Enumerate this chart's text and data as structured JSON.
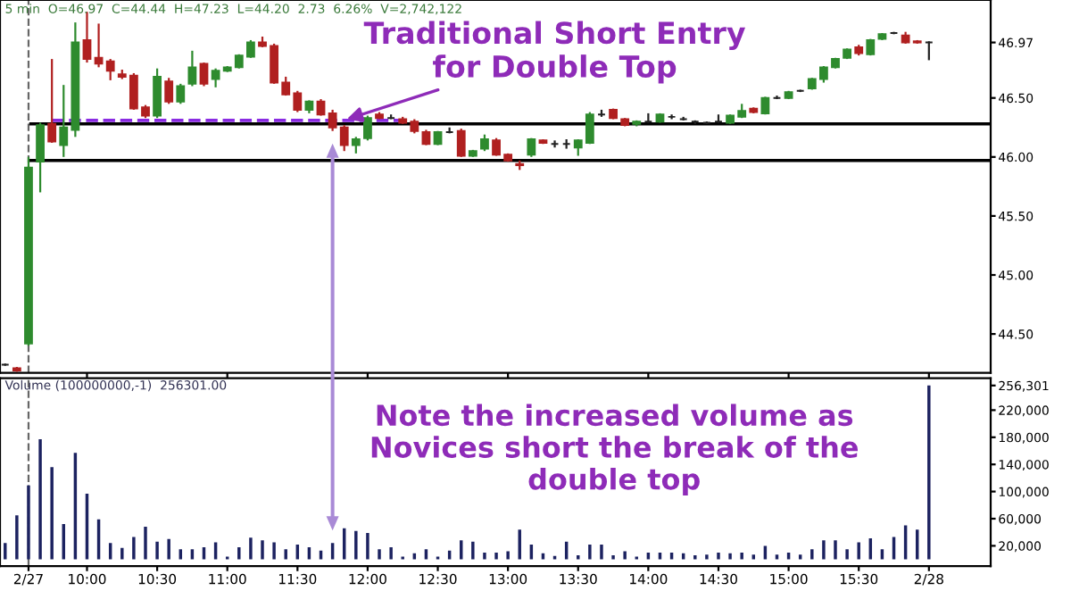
{
  "chart_data": [
    {
      "type": "candlestick",
      "title": "5 min  O=46.97  C=44.44  H=47.23  L=44.20  2.73  6.26%  V=2,742,122",
      "x": [
        9.4167,
        9.5,
        9.5833,
        9.6667,
        9.75,
        9.8333,
        9.9167,
        10,
        10.0833,
        10.1667,
        10.25,
        10.3333,
        10.4167,
        10.5,
        10.5833,
        10.6667,
        10.75,
        10.8333,
        10.9167,
        11,
        11.0833,
        11.1667,
        11.25,
        11.3333,
        11.4167,
        11.5,
        11.5833,
        11.6667,
        11.75,
        11.8333,
        11.9167,
        12,
        12.0833,
        12.1667,
        12.25,
        12.3333,
        12.4167,
        12.5,
        12.5833,
        12.6667,
        12.75,
        12.8333,
        12.9167,
        13,
        13.0833,
        13.1667,
        13.25,
        13.3333,
        13.4167,
        13.5,
        13.5833,
        13.6667,
        13.75,
        13.8333,
        13.9167,
        14,
        14.0833,
        14.1667,
        14.25,
        14.3333,
        14.4167,
        14.5,
        14.5833,
        14.6667,
        14.75,
        14.8333,
        14.9167,
        15,
        15.0833,
        15.1667,
        15.25,
        15.3333,
        15.4167,
        15.5,
        15.5833,
        15.6667,
        15.75,
        15.8333,
        15.9167,
        16
      ],
      "ohlc": [
        [
          44.24,
          44.25,
          44.23,
          44.24
        ],
        [
          44.21,
          44.22,
          44.18,
          44.19
        ],
        [
          44.42,
          46.0,
          44.4,
          45.91
        ],
        [
          45.96,
          46.29,
          45.7,
          46.27
        ],
        [
          46.28,
          46.83,
          46.12,
          46.13
        ],
        [
          46.1,
          46.61,
          46.0,
          46.25
        ],
        [
          46.23,
          47.14,
          46.17,
          46.97
        ],
        [
          46.99,
          47.23,
          46.8,
          46.83
        ],
        [
          46.84,
          47.13,
          46.76,
          46.79
        ],
        [
          46.81,
          46.83,
          46.65,
          46.73
        ],
        [
          46.7,
          46.74,
          46.66,
          46.68
        ],
        [
          46.69,
          46.71,
          46.4,
          46.41
        ],
        [
          46.42,
          46.44,
          46.33,
          46.35
        ],
        [
          46.35,
          46.75,
          46.33,
          46.68
        ],
        [
          46.64,
          46.67,
          46.45,
          46.47
        ],
        [
          46.47,
          46.62,
          46.45,
          46.6
        ],
        [
          46.62,
          46.9,
          46.6,
          46.76
        ],
        [
          46.79,
          46.8,
          46.6,
          46.62
        ],
        [
          46.66,
          46.75,
          46.59,
          46.73
        ],
        [
          46.73,
          46.77,
          46.72,
          46.76
        ],
        [
          46.76,
          46.87,
          46.75,
          46.86
        ],
        [
          46.85,
          46.99,
          46.84,
          46.97
        ],
        [
          46.97,
          47.02,
          46.93,
          46.94
        ],
        [
          46.94,
          46.96,
          46.62,
          46.63
        ],
        [
          46.63,
          46.68,
          46.52,
          46.53
        ],
        [
          46.54,
          46.56,
          46.38,
          46.4
        ],
        [
          46.4,
          46.48,
          46.37,
          46.47
        ],
        [
          46.47,
          46.49,
          46.35,
          46.36
        ],
        [
          46.37,
          46.4,
          46.22,
          46.25
        ],
        [
          46.25,
          46.27,
          46.05,
          46.1
        ],
        [
          46.1,
          46.17,
          46.03,
          46.15
        ],
        [
          46.16,
          46.35,
          46.14,
          46.33
        ],
        [
          46.36,
          46.38,
          46.32,
          46.33
        ],
        [
          46.33,
          46.36,
          46.32,
          46.33
        ],
        [
          46.32,
          46.34,
          46.28,
          46.29
        ],
        [
          46.3,
          46.32,
          46.2,
          46.22
        ],
        [
          46.21,
          46.23,
          46.1,
          46.11
        ],
        [
          46.11,
          46.22,
          46.1,
          46.21
        ],
        [
          46.21,
          46.25,
          46.2,
          46.21
        ],
        [
          46.22,
          46.24,
          46.0,
          46.01
        ],
        [
          46.01,
          46.06,
          46.0,
          46.05
        ],
        [
          46.07,
          46.19,
          46.05,
          46.15
        ],
        [
          46.14,
          46.16,
          46.01,
          46.02
        ],
        [
          46.02,
          46.03,
          45.96,
          45.97
        ],
        [
          45.94,
          45.97,
          45.89,
          45.93
        ],
        [
          46.02,
          46.16,
          46.0,
          46.15
        ],
        [
          46.14,
          46.15,
          46.11,
          46.12
        ],
        [
          46.11,
          46.14,
          46.08,
          46.11
        ],
        [
          46.11,
          46.15,
          46.07,
          46.11
        ],
        [
          46.08,
          46.15,
          46.01,
          46.14
        ],
        [
          46.12,
          46.38,
          46.11,
          46.36
        ],
        [
          46.36,
          46.4,
          46.34,
          46.36
        ],
        [
          46.4,
          46.41,
          46.32,
          46.33
        ],
        [
          46.32,
          46.33,
          46.26,
          46.27
        ],
        [
          46.28,
          46.31,
          46.26,
          46.3
        ],
        [
          46.3,
          46.37,
          46.29,
          46.3
        ],
        [
          46.3,
          46.37,
          46.29,
          46.36
        ],
        [
          46.34,
          46.36,
          46.32,
          46.34
        ],
        [
          46.32,
          46.34,
          46.31,
          46.32
        ],
        [
          46.3,
          46.31,
          46.28,
          46.3
        ],
        [
          46.29,
          46.3,
          46.28,
          46.29
        ],
        [
          46.3,
          46.36,
          46.29,
          46.3
        ],
        [
          46.29,
          46.36,
          46.28,
          46.35
        ],
        [
          46.34,
          46.45,
          46.33,
          46.39
        ],
        [
          46.41,
          46.42,
          46.37,
          46.38
        ],
        [
          46.37,
          46.51,
          46.36,
          46.5
        ],
        [
          46.5,
          46.52,
          46.49,
          46.5
        ],
        [
          46.5,
          46.56,
          46.49,
          46.55
        ],
        [
          46.56,
          46.57,
          46.55,
          46.56
        ],
        [
          46.58,
          46.67,
          46.57,
          46.66
        ],
        [
          46.66,
          46.77,
          46.63,
          46.76
        ],
        [
          46.76,
          46.84,
          46.75,
          46.83
        ],
        [
          46.84,
          46.92,
          46.83,
          46.91
        ],
        [
          46.93,
          46.95,
          46.86,
          46.88
        ],
        [
          46.87,
          47.0,
          46.86,
          46.99
        ],
        [
          47.0,
          47.05,
          46.99,
          47.04
        ],
        [
          47.05,
          47.06,
          47.04,
          47.05
        ],
        [
          47.03,
          47.06,
          46.96,
          46.97
        ],
        [
          46.98,
          46.99,
          46.96,
          46.97
        ],
        [
          46.97,
          46.98,
          46.82,
          46.97
        ]
      ],
      "colors": [
        "#222222",
        "#b02020",
        "#2e8b2e",
        "#2e8b2e",
        "#b02020",
        "#2e8b2e",
        "#2e8b2e",
        "#b02020",
        "#b02020",
        "#b02020",
        "#b02020",
        "#b02020",
        "#b02020",
        "#2e8b2e",
        "#b02020",
        "#2e8b2e",
        "#2e8b2e",
        "#b02020",
        "#2e8b2e",
        "#2e8b2e",
        "#2e8b2e",
        "#2e8b2e",
        "#b02020",
        "#b02020",
        "#b02020",
        "#b02020",
        "#2e8b2e",
        "#b02020",
        "#b02020",
        "#b02020",
        "#2e8b2e",
        "#2e8b2e",
        "#b02020",
        "#222222",
        "#b02020",
        "#b02020",
        "#b02020",
        "#2e8b2e",
        "#222222",
        "#b02020",
        "#2e8b2e",
        "#2e8b2e",
        "#b02020",
        "#b02020",
        "#b02020",
        "#2e8b2e",
        "#b02020",
        "#222222",
        "#222222",
        "#2e8b2e",
        "#2e8b2e",
        "#222222",
        "#b02020",
        "#b02020",
        "#2e8b2e",
        "#222222",
        "#2e8b2e",
        "#222222",
        "#222222",
        "#222222",
        "#222222",
        "#222222",
        "#2e8b2e",
        "#2e8b2e",
        "#b02020",
        "#2e8b2e",
        "#222222",
        "#2e8b2e",
        "#222222",
        "#2e8b2e",
        "#2e8b2e",
        "#2e8b2e",
        "#2e8b2e",
        "#b02020",
        "#2e8b2e",
        "#2e8b2e",
        "#222222",
        "#b02020",
        "#b02020",
        "#222222"
      ],
      "series": [
        {
          "type": "line",
          "color": "#8a2be2",
          "line_style": "dashed",
          "x": [
            9.75,
            12.25
          ],
          "values": [
            46.31,
            46.31
          ]
        },
        {
          "type": "line",
          "color": "#000000",
          "line_style": "solid",
          "x": [
            9.6,
            16.44
          ],
          "values": [
            46.28,
            46.28
          ]
        },
        {
          "type": "line",
          "color": "#000000",
          "line_style": "solid",
          "x": [
            9.6,
            16.44
          ],
          "values": [
            45.97,
            45.97
          ]
        }
      ],
      "annotations": [
        {
          "text": "Traditional Short Entry\nfor Double Top",
          "x": 11.75,
          "y": 46.28
        }
      ],
      "ref_lines": [
        {
          "axis": "x",
          "value": 9.5833,
          "color": "#666666",
          "line_style": "dashed"
        }
      ],
      "xlim": [
        9.38,
        16.44
      ],
      "ylim": [
        44.17,
        47.33
      ],
      "yticks": [
        {
          "value": 44.5,
          "label": "44.50"
        },
        {
          "value": 45.0,
          "label": "45.00"
        },
        {
          "value": 45.5,
          "label": "45.50"
        },
        {
          "value": 46.0,
          "label": "46.00"
        },
        {
          "value": 46.5,
          "label": "46.50"
        },
        {
          "value": 46.97,
          "label": "46.97"
        }
      ],
      "tick_labels": "y",
      "grid": false
    },
    {
      "type": "bar",
      "title": "Volume (100000000,-1)  256301.00",
      "x": [
        9.4167,
        9.5,
        9.5833,
        9.6667,
        9.75,
        9.8333,
        9.9167,
        10,
        10.0833,
        10.1667,
        10.25,
        10.3333,
        10.4167,
        10.5,
        10.5833,
        10.6667,
        10.75,
        10.8333,
        10.9167,
        11,
        11.0833,
        11.1667,
        11.25,
        11.3333,
        11.4167,
        11.5,
        11.5833,
        11.6667,
        11.75,
        11.8333,
        11.9167,
        12,
        12.0833,
        12.1667,
        12.25,
        12.3333,
        12.4167,
        12.5,
        12.5833,
        12.6667,
        12.75,
        12.8333,
        12.9167,
        13,
        13.0833,
        13.1667,
        13.25,
        13.3333,
        13.4167,
        13.5,
        13.5833,
        13.6667,
        13.75,
        13.8333,
        13.9167,
        14,
        14.0833,
        14.1667,
        14.25,
        14.3333,
        14.4167,
        14.5,
        14.5833,
        14.6667,
        14.75,
        14.8333,
        14.9167,
        15,
        15.0833,
        15.1667,
        15.25,
        15.3333,
        15.4167,
        15.5,
        15.5833,
        15.6667,
        15.75,
        15.8333,
        15.9167,
        16
      ],
      "values": [
        24000,
        65000,
        109000,
        177000,
        136000,
        52000,
        157000,
        97000,
        59000,
        24000,
        17000,
        33000,
        48000,
        26000,
        30000,
        15000,
        15000,
        18000,
        25000,
        4000,
        18000,
        32000,
        28000,
        25000,
        15000,
        22000,
        18000,
        13000,
        24000,
        46000,
        42000,
        39000,
        15000,
        18000,
        4000,
        9000,
        15000,
        4000,
        13000,
        28000,
        26000,
        10000,
        10000,
        12000,
        44000,
        22000,
        9000,
        5000,
        26000,
        6000,
        22000,
        22000,
        6000,
        12000,
        4000,
        10000,
        10000,
        10000,
        9000,
        6000,
        7000,
        10000,
        9000,
        10000,
        7000,
        20000,
        7000,
        10000,
        7000,
        15000,
        28000,
        28000,
        15000,
        25000,
        31000,
        15000,
        33000,
        50000,
        44000,
        256301
      ],
      "color": "#1c2260",
      "annotations": [
        {
          "text": "Note the increased volume as\nNovices short the break of the\ndouble top",
          "x": 11.75,
          "y": 24000
        }
      ],
      "ref_lines": [
        {
          "axis": "x",
          "value": 9.5833,
          "color": "#666666",
          "line_style": "dashed"
        }
      ],
      "xlim": [
        9.38,
        16.44
      ],
      "ylim": [
        -10000,
        267000
      ],
      "xticks": [
        {
          "value": 9.5833,
          "label": "2/27"
        },
        {
          "value": 10,
          "label": "10:00"
        },
        {
          "value": 10.5,
          "label": "10:30"
        },
        {
          "value": 11,
          "label": "11:00"
        },
        {
          "value": 11.5,
          "label": "11:30"
        },
        {
          "value": 12,
          "label": "12:00"
        },
        {
          "value": 12.5,
          "label": "12:30"
        },
        {
          "value": 13,
          "label": "13:00"
        },
        {
          "value": 13.5,
          "label": "13:30"
        },
        {
          "value": 14,
          "label": "14:00"
        },
        {
          "value": 14.5,
          "label": "14:30"
        },
        {
          "value": 15,
          "label": "15:00"
        },
        {
          "value": 15.5,
          "label": "15:30"
        },
        {
          "value": 16,
          "label": "2/28"
        }
      ],
      "yticks": [
        {
          "value": 20000,
          "label": "20,000"
        },
        {
          "value": 60000,
          "label": "60,000"
        },
        {
          "value": 100000,
          "label": "100,000"
        },
        {
          "value": 140000,
          "label": "140,000"
        },
        {
          "value": 180000,
          "label": "180,000"
        },
        {
          "value": 220000,
          "label": "220,000"
        },
        {
          "value": 256301,
          "label": "256,301"
        }
      ],
      "grid": false
    }
  ]
}
